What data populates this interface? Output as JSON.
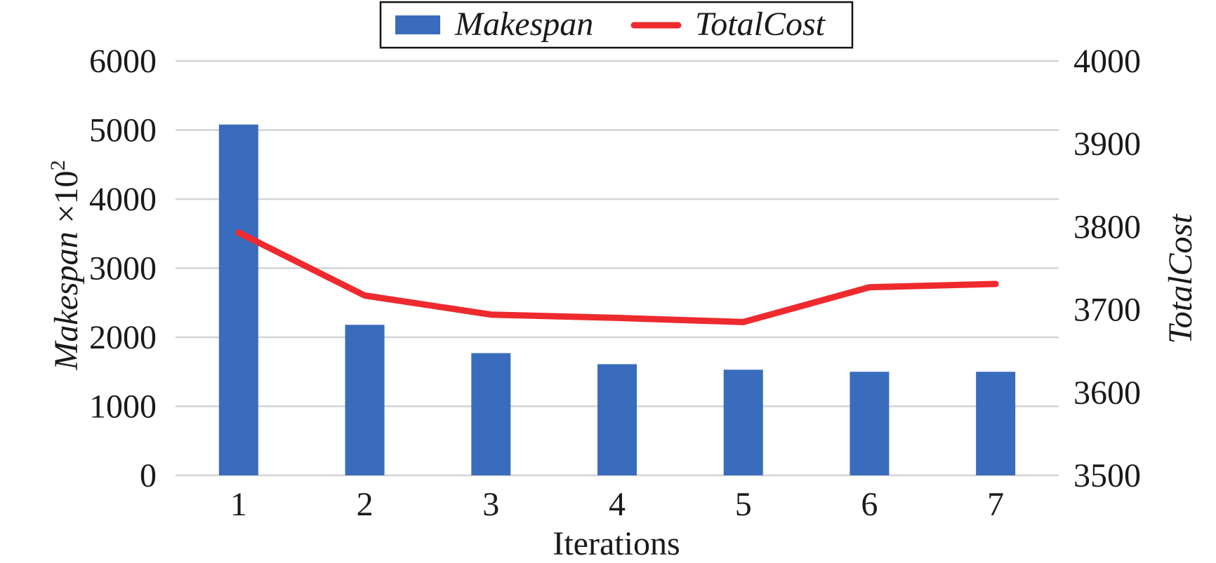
{
  "chart_data": {
    "type": "bar",
    "categories": [
      "1",
      "2",
      "3",
      "4",
      "5",
      "6",
      "7"
    ],
    "series": [
      {
        "name": "Makespan",
        "type": "bar",
        "axis": "left",
        "color": "#3a6cbd",
        "values": [
          5080,
          2180,
          1770,
          1610,
          1530,
          1500,
          1500
        ]
      },
      {
        "name": "TotalCost",
        "type": "line",
        "axis": "right",
        "color": "#ee2a2e",
        "values": [
          3793,
          3717,
          3694,
          3690,
          3685,
          3727,
          3731
        ]
      }
    ],
    "xlabel": "Iterations",
    "ylabel": "Makespan",
    "ylabel_suffix": "×10",
    "ylabel_exponent": "2",
    "y2label": "TotalCost",
    "ylim": [
      0,
      6000
    ],
    "y2lim": [
      3500,
      4000
    ],
    "yticks": [
      "0",
      "1000",
      "2000",
      "3000",
      "4000",
      "5000",
      "6000"
    ],
    "y2ticks": [
      "3500",
      "3600",
      "3700",
      "3800",
      "3900",
      "4000"
    ],
    "grid": true,
    "legend_position": "top-center"
  }
}
